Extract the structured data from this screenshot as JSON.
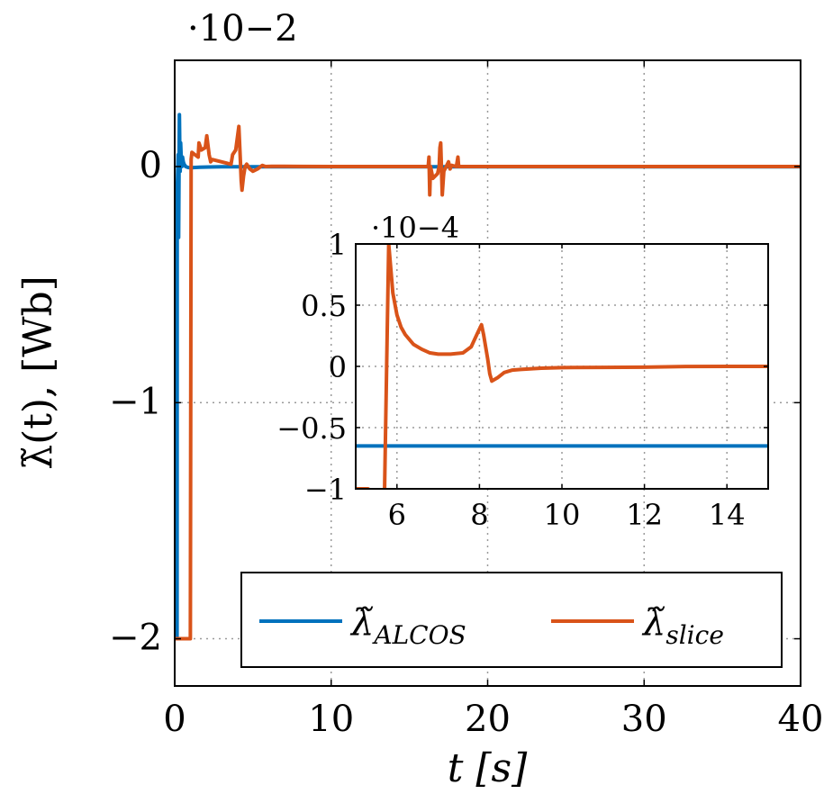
{
  "colors": {
    "alcos": "#0072BD",
    "slice": "#D95319",
    "grid": "#9a9a9a",
    "frame": "#000000"
  },
  "chart_data": [
    {
      "id": "main",
      "type": "line",
      "xlabel": "t [s]",
      "ylabel": "λ̃(t), [Wb]",
      "scale_label": "·10−2",
      "xlim": [
        0,
        40
      ],
      "ylim": [
        -2.2,
        0.45
      ],
      "x_ticks": [
        0,
        10,
        20,
        30,
        40
      ],
      "y_ticks": [
        -2,
        -1,
        0
      ],
      "x_tick_labels": [
        "0",
        "10",
        "20",
        "30",
        "40"
      ],
      "y_tick_labels": [
        "−2",
        "−1",
        "0"
      ],
      "grid": true,
      "legend": "bottom-right",
      "series": [
        {
          "name": "λ̃ALCOS",
          "color_key": "alcos",
          "x": [
            0,
            0.15,
            0.16,
            0.22,
            0.25,
            0.28,
            0.3,
            0.33,
            0.35,
            0.38,
            0.42,
            0.46,
            0.5,
            0.55,
            0.6,
            0.7,
            0.85,
            1.0,
            1.2,
            1.6,
            2.2,
            3,
            5,
            10,
            20,
            30,
            40
          ],
          "y": [
            -2.0,
            -2.0,
            -0.1,
            0.05,
            -0.3,
            0.02,
            0.22,
            0.05,
            -0.02,
            0.1,
            0.03,
            0.0,
            0.04,
            0.02,
            0.01,
            0.0,
            -0.004,
            -0.005,
            -0.004,
            -0.003,
            -0.002,
            -0.001,
            -0.0007,
            -0.0007,
            -0.0007,
            -0.0007,
            -0.0007
          ]
        },
        {
          "name": "λ̃slice",
          "color_key": "slice",
          "x": [
            0,
            1.0,
            1.05,
            1.1,
            1.3,
            1.5,
            1.55,
            1.7,
            1.95,
            2.05,
            2.2,
            2.3,
            2.4,
            3.0,
            3.6,
            3.7,
            3.9,
            4.1,
            4.2,
            4.25,
            4.3,
            4.4,
            4.5,
            4.6,
            4.8,
            5.0,
            5.3,
            5.6,
            5.8,
            6.2,
            7.0,
            8.0,
            10,
            15,
            16.2,
            16.25,
            16.3,
            16.35,
            16.5,
            16.8,
            16.9,
            16.95,
            17.0,
            17.1,
            17.2,
            17.35,
            17.5,
            17.6,
            17.7,
            18.0,
            18.1,
            18.15,
            18.2,
            20,
            25,
            30,
            35,
            40
          ],
          "y": [
            -2.0,
            -2.0,
            0.03,
            0.06,
            0.05,
            0.04,
            0.1,
            0.07,
            0.08,
            0.13,
            0.05,
            0.02,
            0.03,
            0.02,
            0.01,
            0.05,
            0.07,
            0.17,
            0.02,
            -0.06,
            -0.1,
            -0.04,
            0.0,
            0.01,
            -0.01,
            -0.02,
            -0.01,
            0.005,
            0.0,
            0.001,
            0.001,
            0.0005,
            0.0002,
            0.0001,
            0.0001,
            0.04,
            -0.12,
            0.0,
            -0.05,
            -0.03,
            0.0,
            0.08,
            0.1,
            -0.12,
            -0.02,
            0.0,
            0.02,
            -0.01,
            0.005,
            0.0,
            0.04,
            0.0,
            0.0,
            0.0,
            0.0,
            0.0,
            0.0,
            0.0
          ]
        }
      ]
    },
    {
      "id": "inset",
      "type": "line",
      "scale_label": "·10−4",
      "xlim": [
        5,
        15
      ],
      "ylim": [
        -1,
        1
      ],
      "x_ticks": [
        6,
        8,
        10,
        12,
        14
      ],
      "y_ticks": [
        -1,
        -0.5,
        0,
        0.5,
        1
      ],
      "x_tick_labels": [
        "6",
        "8",
        "10",
        "12",
        "14"
      ],
      "y_tick_labels": [
        "−1",
        "−0.5",
        "0",
        "0.5",
        "1"
      ],
      "grid": true,
      "series": [
        {
          "color_key": "alcos",
          "x": [
            5,
            15
          ],
          "y": [
            -0.65,
            -0.65
          ]
        },
        {
          "color_key": "slice",
          "x": [
            5.0,
            5.2,
            5.3,
            5.5,
            5.7,
            5.8,
            5.9,
            6.0,
            6.1,
            6.2,
            6.4,
            6.6,
            6.8,
            7.0,
            7.3,
            7.6,
            7.8,
            7.95,
            8.05,
            8.1,
            8.2,
            8.25,
            8.3,
            8.45,
            8.6,
            8.8,
            9.0,
            9.5,
            10,
            11,
            12,
            12.5,
            13,
            14,
            15
          ],
          "y": [
            -1.0,
            -1.0,
            -1.0,
            -1.05,
            -1.0,
            1.0,
            0.6,
            0.42,
            0.32,
            0.26,
            0.18,
            0.14,
            0.11,
            0.1,
            0.1,
            0.11,
            0.16,
            0.27,
            0.34,
            0.26,
            0.06,
            -0.06,
            -0.12,
            -0.09,
            -0.05,
            -0.03,
            -0.025,
            -0.015,
            -0.01,
            -0.008,
            -0.006,
            -0.004,
            -0.001,
            0.0,
            0.0
          ]
        }
      ]
    }
  ],
  "legend": {
    "alcos_label": "λ̃",
    "alcos_sub": "ALCOS",
    "slice_label": "λ̃",
    "slice_sub": "slice"
  }
}
